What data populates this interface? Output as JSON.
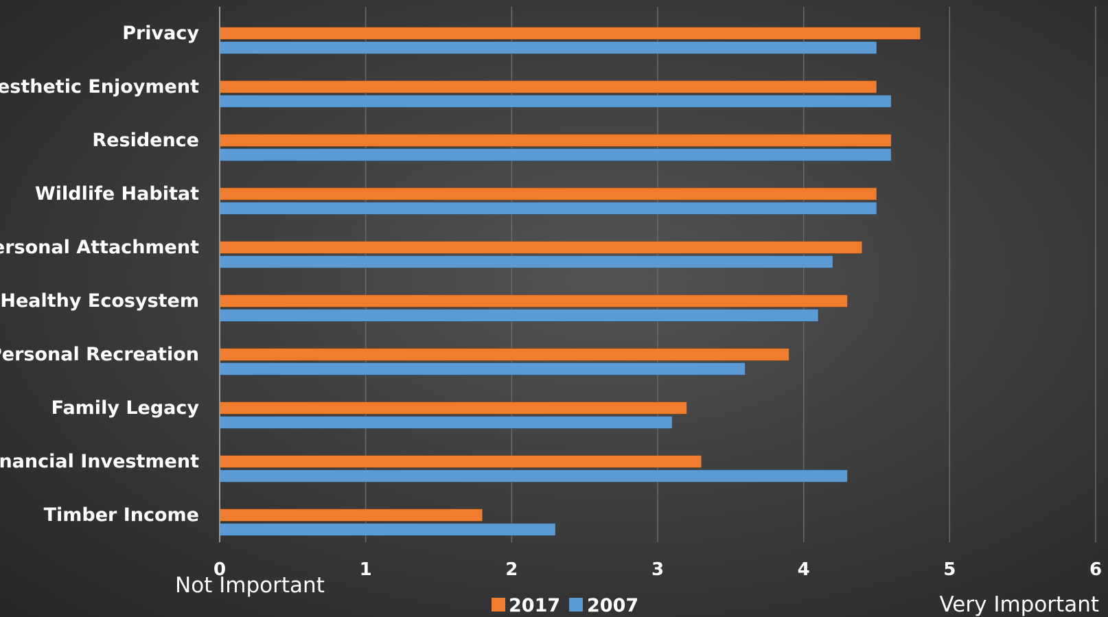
{
  "chart_data": {
    "type": "bar",
    "orientation": "horizontal",
    "categories": [
      "Privacy",
      "Aesthetic Enjoyment",
      "Residence",
      "Wildlife Habitat",
      "Personal Attachment",
      "Healthy Ecosystem",
      "Personal Recreation",
      "Family Legacy",
      "Financial Investment",
      "Timber Income"
    ],
    "series": [
      {
        "name": "2017",
        "color": "#f07c2e",
        "values": [
          4.8,
          4.5,
          4.6,
          4.5,
          4.4,
          4.3,
          3.9,
          3.2,
          3.3,
          1.8
        ]
      },
      {
        "name": "2007",
        "color": "#5b9bd5",
        "values": [
          4.5,
          4.6,
          4.6,
          4.5,
          4.2,
          4.1,
          3.6,
          3.1,
          4.3,
          2.3
        ]
      }
    ],
    "xlim": [
      0,
      6
    ],
    "xticks": [
      0,
      1,
      2,
      3,
      4,
      5,
      6
    ],
    "grid": true,
    "legend_position": "bottom",
    "x_low_label": "Not Important",
    "x_high_label": "Very Important"
  }
}
